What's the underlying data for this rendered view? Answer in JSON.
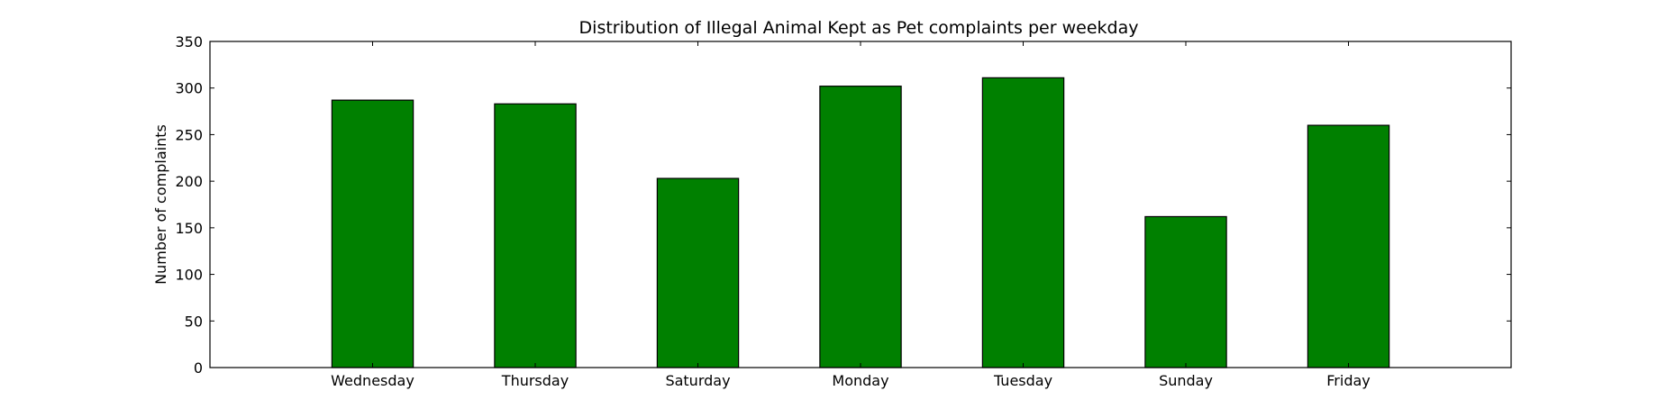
{
  "chart_data": {
    "type": "bar",
    "title": "Distribution of  Illegal Animal Kept as Pet complaints per weekday",
    "xlabel": "",
    "ylabel": "Number of complaints",
    "categories": [
      "Wednesday",
      "Thursday",
      "Saturday",
      "Monday",
      "Tuesday",
      "Sunday",
      "Friday"
    ],
    "values": [
      287,
      283,
      203,
      302,
      311,
      162,
      260
    ],
    "ylim": [
      0,
      350
    ],
    "yticks": [
      0,
      50,
      100,
      150,
      200,
      250,
      300,
      350
    ],
    "bar_color": "#008000",
    "bar_edge_color": "#000000",
    "grid": false,
    "legend": "none"
  }
}
